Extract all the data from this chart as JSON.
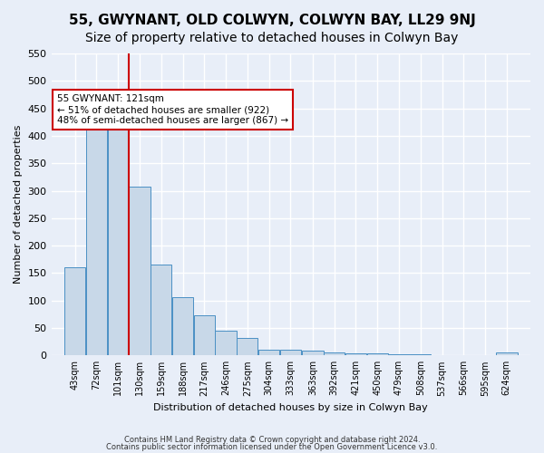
{
  "title": "55, GWYNANT, OLD COLWYN, COLWYN BAY, LL29 9NJ",
  "subtitle": "Size of property relative to detached houses in Colwyn Bay",
  "xlabel": "Distribution of detached houses by size in Colwyn Bay",
  "ylabel": "Number of detached properties",
  "bar_color": "#c8d8e8",
  "bar_edge_color": "#4a90c4",
  "background_color": "#e8eef8",
  "grid_color": "#ffffff",
  "categories": [
    "43sqm",
    "72sqm",
    "101sqm",
    "130sqm",
    "159sqm",
    "188sqm",
    "217sqm",
    "246sqm",
    "275sqm",
    "304sqm",
    "333sqm",
    "363sqm",
    "392sqm",
    "421sqm",
    "450sqm",
    "479sqm",
    "508sqm",
    "537sqm",
    "566sqm",
    "595sqm",
    "624sqm"
  ],
  "values": [
    160,
    450,
    437,
    307,
    165,
    106,
    73,
    45,
    32,
    10,
    10,
    8,
    5,
    3,
    3,
    2,
    2,
    1,
    1,
    0,
    5
  ],
  "bin_width": 29,
  "bin_starts": [
    43,
    72,
    101,
    130,
    159,
    188,
    217,
    246,
    275,
    304,
    333,
    363,
    392,
    421,
    450,
    479,
    508,
    537,
    566,
    595,
    624
  ],
  "red_line_x": 130,
  "ylim": [
    0,
    550
  ],
  "yticks": [
    0,
    50,
    100,
    150,
    200,
    250,
    300,
    350,
    400,
    450,
    500,
    550
  ],
  "annotation_text": "55 GWYNANT: 121sqm\n← 51% of detached houses are smaller (922)\n48% of semi-detached houses are larger (867) →",
  "annotation_box_color": "#ffffff",
  "annotation_box_edge_color": "#cc0000",
  "footer_line1": "Contains HM Land Registry data © Crown copyright and database right 2024.",
  "footer_line2": "Contains public sector information licensed under the Open Government Licence v3.0.",
  "title_fontsize": 11,
  "subtitle_fontsize": 10
}
